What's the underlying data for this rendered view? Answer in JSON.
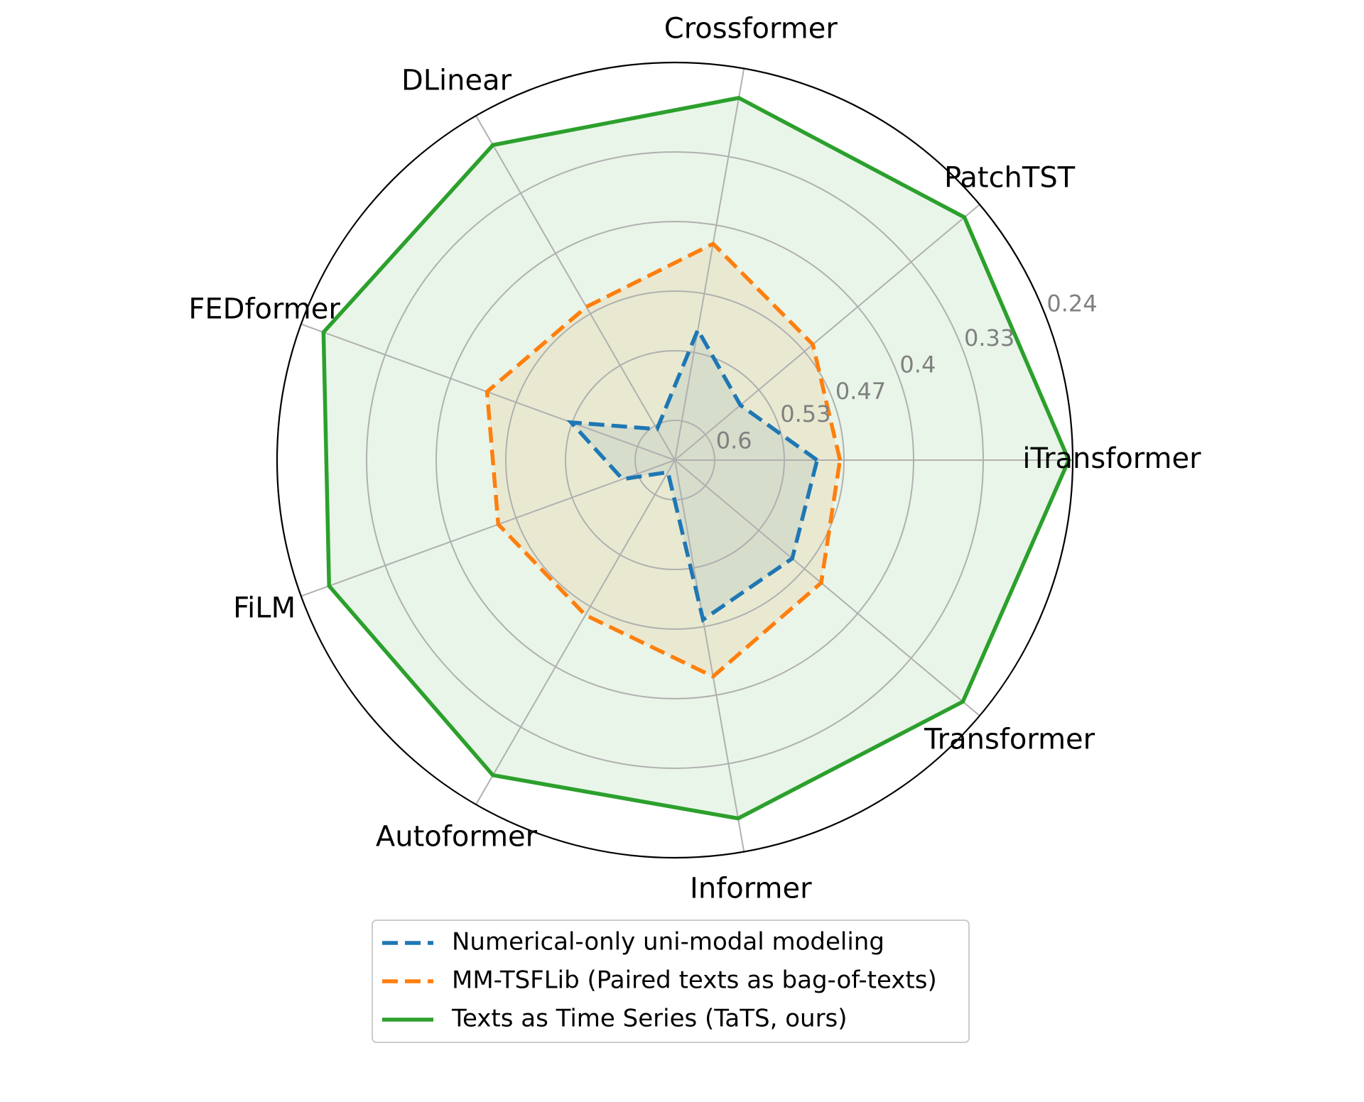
{
  "chart_data": {
    "type": "radar",
    "categories": [
      "iTransformer",
      "PatchTST",
      "Crossformer",
      "DLinear",
      "FEDformer",
      "FiLM",
      "Autoformer",
      "Informer",
      "Transformer"
    ],
    "r_ticks": [
      "0.6",
      "0.53",
      "0.47",
      "0.4",
      "0.33",
      "0.24"
    ],
    "axis_direction": "reversed (higher values toward center)",
    "grid": true,
    "legend_position": "bottom-center",
    "series": [
      {
        "name": "Numerical-only uni-modal modeling",
        "line_style": "dashed",
        "color": "#1f77b4",
        "values": [
          0.497,
          0.554,
          0.507,
          0.604,
          0.529,
          0.584,
          0.626,
          0.477,
          0.486
        ]
      },
      {
        "name": "MM-TSFLib (Paired texts as bag-of-texts)",
        "line_style": "dashed",
        "color": "#ff7f0e",
        "values": [
          0.474,
          0.459,
          0.419,
          0.462,
          0.439,
          0.451,
          0.46,
          0.419,
          0.448
        ]
      },
      {
        "name": "Texts as Time Series (TaTS, ours)",
        "line_style": "solid",
        "color": "#2ca02c",
        "values": [
          0.244,
          0.26,
          0.27,
          0.274,
          0.264,
          0.27,
          0.274,
          0.274,
          0.262
        ]
      }
    ]
  }
}
